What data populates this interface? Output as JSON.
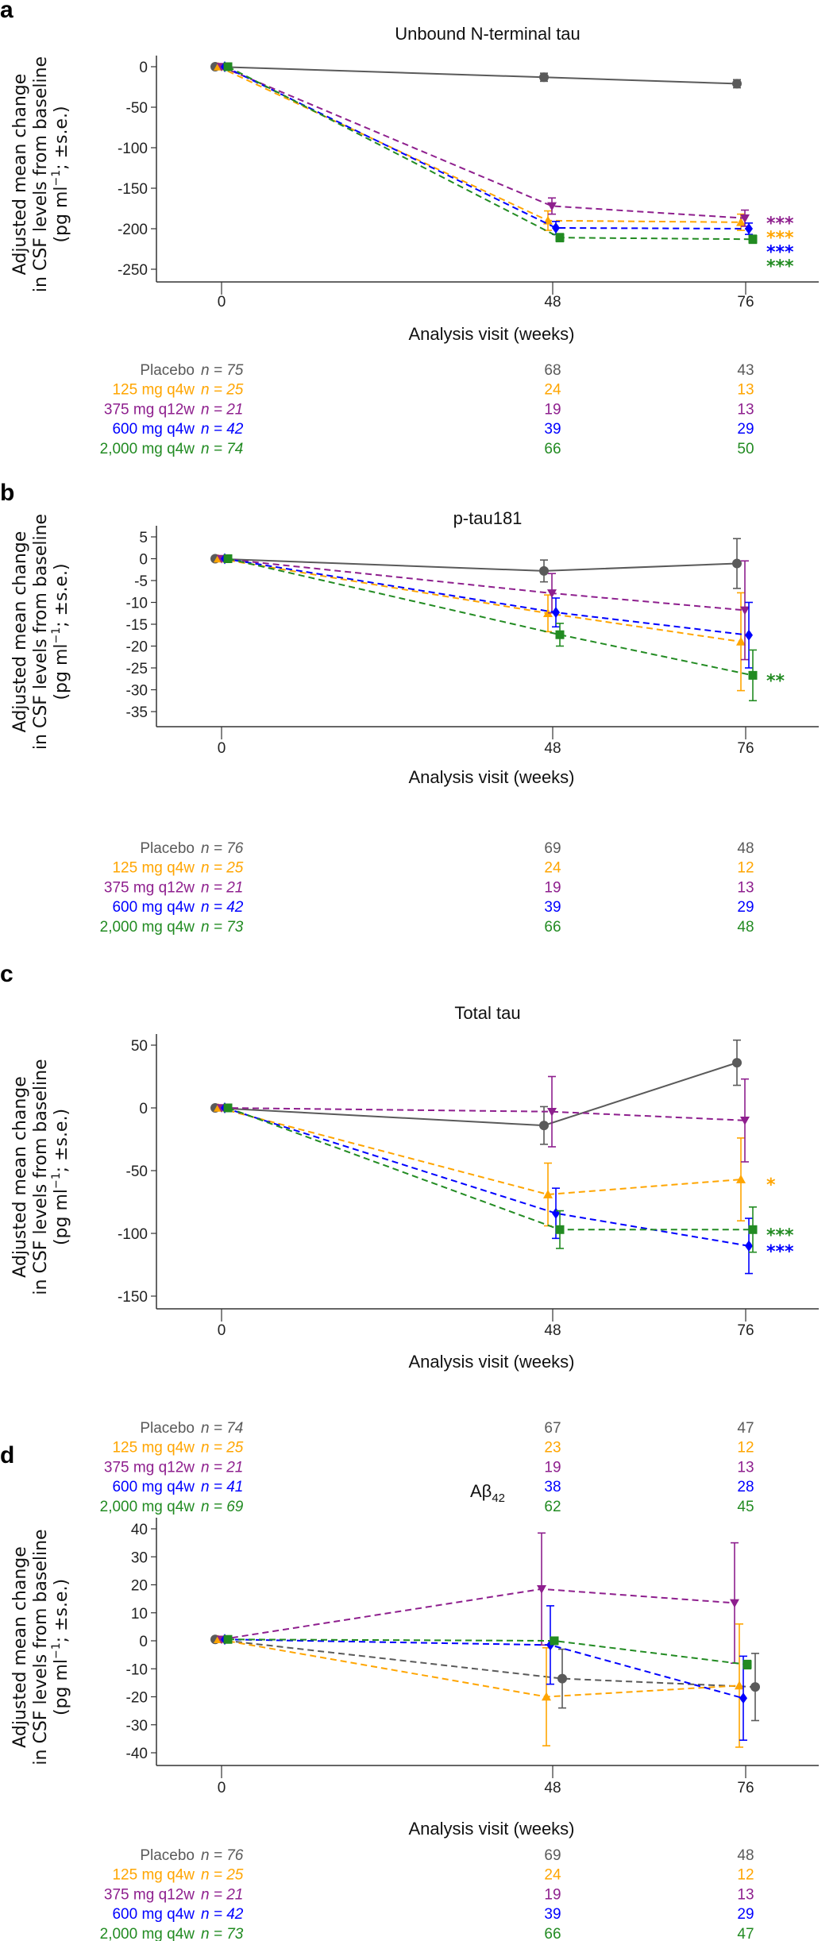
{
  "groups": [
    {
      "name": "Placebo",
      "color": "#5a5a5a",
      "marker": "circle"
    },
    {
      "name": "125 mg q4w",
      "color": "#ffa500",
      "marker": "triangle-up"
    },
    {
      "name": "375 mg q12w",
      "color": "#8e1f8e",
      "marker": "triangle-down"
    },
    {
      "name": "600 mg q4w",
      "color": "#0000ff",
      "marker": "diamond"
    },
    {
      "name": "2,000 mg q4w",
      "color": "#228b22",
      "marker": "square"
    }
  ],
  "chart_data": [
    {
      "panel": "a",
      "type": "line",
      "title": "Unbound N-terminal tau",
      "title_sub": "",
      "xlabel": "Analysis visit (weeks)",
      "ylabel": [
        "Adjusted mean change",
        "in CSF levels from baseline",
        "(pg ml",
        "−1",
        "; ±s.e.)"
      ],
      "x": [
        0,
        48,
        76
      ],
      "x_ticks": [
        "0",
        "48",
        "76"
      ],
      "ylim": [
        -250,
        0
      ],
      "y_ticks": [
        0,
        -50,
        -100,
        -150,
        -200,
        -250
      ],
      "series": [
        {
          "name": "Placebo",
          "values": [
            0,
            -13,
            -21
          ],
          "se": [
            0,
            5,
            5
          ],
          "line": "solid",
          "star": "",
          "n": [
            "n = 75",
            "68",
            "43"
          ]
        },
        {
          "name": "125 mg q4w",
          "values": [
            0,
            -190,
            -192
          ],
          "se": [
            0,
            12,
            10
          ],
          "line": "dashed",
          "star": "***",
          "n": [
            "n = 25",
            "24",
            "13"
          ]
        },
        {
          "name": "375 mg q12w",
          "values": [
            0,
            -172,
            -187
          ],
          "se": [
            0,
            10,
            10
          ],
          "line": "dashed",
          "star": "***",
          "n": [
            "n = 21",
            "19",
            "13"
          ]
        },
        {
          "name": "600 mg q4w",
          "values": [
            0,
            -199,
            -200
          ],
          "se": [
            0,
            8,
            7
          ],
          "line": "dashed",
          "star": "***",
          "n": [
            "n = 42",
            "39",
            "29"
          ]
        },
        {
          "name": "2,000 mg q4w",
          "values": [
            0,
            -211,
            -213
          ],
          "se": [
            0,
            5,
            5
          ],
          "line": "dashed",
          "star": "***",
          "n": [
            "n = 74",
            "66",
            "50"
          ]
        }
      ]
    },
    {
      "panel": "b",
      "type": "line",
      "title": "p-tau181",
      "title_sub": "",
      "xlabel": "Analysis visit (weeks)",
      "ylabel": [
        "Adjusted mean change",
        "in CSF levels from baseline",
        "(pg ml",
        "−1",
        "; ±s.e.)"
      ],
      "x": [
        0,
        48,
        76
      ],
      "x_ticks": [
        "0",
        "48",
        "76"
      ],
      "ylim": [
        -35,
        5
      ],
      "y_ticks": [
        5,
        0,
        -5,
        -10,
        -15,
        -20,
        -25,
        -30,
        -35
      ],
      "series": [
        {
          "name": "Placebo",
          "values": [
            0,
            -2.8,
            -1.1
          ],
          "se": [
            0,
            2.5,
            5.7
          ],
          "line": "solid",
          "star": "",
          "n": [
            "n = 76",
            "69",
            "48"
          ]
        },
        {
          "name": "125 mg q4w",
          "values": [
            0,
            -12.5,
            -19
          ],
          "se": [
            0,
            4.2,
            11.2
          ],
          "line": "dashed",
          "star": "",
          "n": [
            "n = 25",
            "24",
            "12"
          ]
        },
        {
          "name": "375 mg q12w",
          "values": [
            0,
            -7.9,
            -11.8
          ],
          "se": [
            0,
            4.5,
            11.3
          ],
          "line": "dashed",
          "star": "",
          "n": [
            "n = 21",
            "19",
            "13"
          ]
        },
        {
          "name": "600 mg q4w",
          "values": [
            0,
            -12.3,
            -17.5
          ],
          "se": [
            0,
            3.3,
            7.5
          ],
          "line": "dashed",
          "star": "",
          "n": [
            "n = 42",
            "39",
            "29"
          ]
        },
        {
          "name": "2,000 mg q4w",
          "values": [
            0,
            -17.4,
            -26.7
          ],
          "se": [
            0,
            2.6,
            5.8
          ],
          "line": "dashed",
          "star": "**",
          "n": [
            "n = 73",
            "66",
            "48"
          ]
        }
      ]
    },
    {
      "panel": "c",
      "type": "line",
      "title": "Total tau",
      "title_sub": "",
      "xlabel": "Analysis visit (weeks)",
      "ylabel": [
        "Adjusted mean change",
        "in CSF levels from baseline",
        "(pg ml",
        "−1",
        "; ±s.e.)"
      ],
      "x": [
        0,
        48,
        76
      ],
      "x_ticks": [
        "0",
        "48",
        "76"
      ],
      "ylim": [
        -150,
        50
      ],
      "y_ticks": [
        50,
        0,
        -50,
        -100,
        -150
      ],
      "series": [
        {
          "name": "Placebo",
          "values": [
            0,
            -14,
            36
          ],
          "se": [
            0,
            15,
            18
          ],
          "line": "solid",
          "star": "",
          "n": [
            "n = 74",
            "67",
            "47"
          ]
        },
        {
          "name": "125 mg q4w",
          "values": [
            0,
            -69,
            -57
          ],
          "se": [
            0,
            25,
            33
          ],
          "line": "dashed",
          "star": "*",
          "n": [
            "n = 25",
            "23",
            "12"
          ]
        },
        {
          "name": "375 mg q12w",
          "values": [
            0,
            -3,
            -10
          ],
          "se": [
            0,
            28,
            33
          ],
          "line": "dashed",
          "star": "",
          "n": [
            "n = 21",
            "19",
            "13"
          ]
        },
        {
          "name": "600 mg q4w",
          "values": [
            0,
            -84,
            -110
          ],
          "se": [
            0,
            20,
            22
          ],
          "line": "dashed",
          "star": "***",
          "n": [
            "n = 41",
            "38",
            "28"
          ]
        },
        {
          "name": "2,000 mg q4w",
          "values": [
            0,
            -97,
            -97
          ],
          "se": [
            0,
            15,
            18
          ],
          "line": "dashed",
          "star": "***",
          "n": [
            "n = 69",
            "62",
            "45"
          ]
        }
      ]
    },
    {
      "panel": "d",
      "type": "line",
      "title": "Aβ",
      "title_sub": "42",
      "xlabel": "Analysis visit (weeks)",
      "ylabel": [
        "Adjusted mean change",
        "in CSF levels from baseline",
        "(pg ml",
        "−1",
        "; ±s.e.)"
      ],
      "x": [
        0,
        48,
        76
      ],
      "x_ticks": [
        "0",
        "48",
        "76"
      ],
      "ylim": [
        -40,
        40
      ],
      "y_ticks": [
        40,
        30,
        20,
        10,
        0,
        -10,
        -20,
        -30,
        -40
      ],
      "series": [
        {
          "name": "Placebo",
          "values": [
            0.5,
            -13.5,
            -16.5
          ],
          "se": [
            0,
            10.5,
            12
          ],
          "line": "dashed",
          "star": "",
          "n": [
            "n = 76",
            "69",
            "48"
          ]
        },
        {
          "name": "125 mg q4w",
          "values": [
            0.5,
            -20,
            -16
          ],
          "se": [
            0,
            17.5,
            22
          ],
          "line": "dashed",
          "star": "",
          "n": [
            "n = 25",
            "24",
            "12"
          ]
        },
        {
          "name": "375 mg q12w",
          "values": [
            0.5,
            18.5,
            13.5
          ],
          "se": [
            0,
            20,
            21.5
          ],
          "line": "dashed",
          "star": "",
          "n": [
            "n = 21",
            "19",
            "13"
          ]
        },
        {
          "name": "600 mg q4w",
          "values": [
            0.5,
            -1.5,
            -20.5
          ],
          "se": [
            0,
            14,
            15
          ],
          "line": "dashed",
          "star": "",
          "n": [
            "n = 42",
            "39",
            "29"
          ]
        },
        {
          "name": "2,000 mg q4w",
          "values": [
            0.5,
            0,
            -8.5
          ],
          "se": [
            0,
            1,
            1.5
          ],
          "line": "dashed",
          "star": "",
          "n": [
            "n = 73",
            "66",
            "47"
          ]
        }
      ]
    }
  ]
}
